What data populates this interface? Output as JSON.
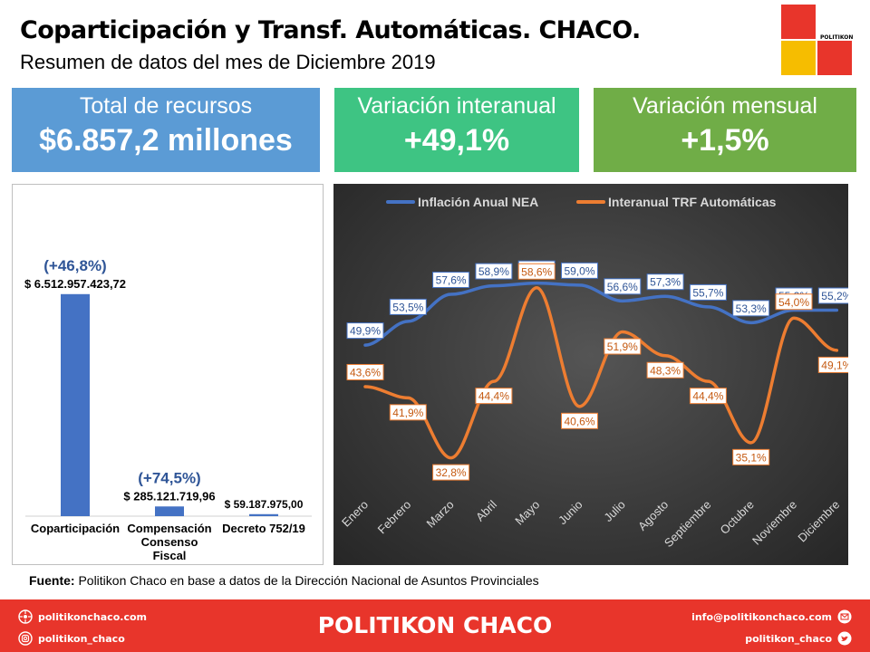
{
  "header": {
    "title": "Coparticipación y Transf. Automáticas. CHACO.",
    "subtitle": "Resumen de datos del mes de Diciembre 2019"
  },
  "logo": {
    "text": "POLITIKON"
  },
  "kpis": [
    {
      "label": "Total de recursos",
      "value": "$6.857,2 millones"
    },
    {
      "label": "Variación interanual",
      "value": "+49,1%"
    },
    {
      "label": "Variación mensual",
      "value": "+1,5%"
    }
  ],
  "chart_data": [
    {
      "type": "bar",
      "categories": [
        "Coparticipación",
        "Compensación Consenso Fiscal",
        "Decreto 752/19"
      ],
      "category_lines": [
        [
          "Coparticipación"
        ],
        [
          "Compensación",
          "Consenso",
          "Fiscal"
        ],
        [
          "Decreto 752/19"
        ]
      ],
      "values": [
        6512957423.72,
        285121719.96,
        59187975.0
      ],
      "value_labels": [
        "$ 6.512.957.423,72",
        "$ 285.121.719,96",
        "$ 59.187.975,00"
      ],
      "variation_labels": [
        "(+46,8%)",
        "(+74,5%)",
        ""
      ],
      "ylim": [
        0,
        6720000000
      ],
      "bar_color": "#4472c4",
      "grid": false
    },
    {
      "type": "line",
      "categories": [
        "Enero",
        "Febrero",
        "Marzo",
        "Abril",
        "Mayo",
        "Junio",
        "Julio",
        "Agosto",
        "Septiembre",
        "Octubre",
        "Noviembre",
        "Diciembre"
      ],
      "series": [
        {
          "name": "Inflación Anual NEA",
          "color": "#4472c4",
          "values": [
            49.9,
            53.5,
            57.6,
            58.9,
            59.3,
            59.0,
            56.6,
            57.3,
            55.7,
            53.3,
            55.2,
            55.2
          ],
          "labels": [
            "49,9%",
            "53,5%",
            "57,6%",
            "58,9%",
            "59,3%",
            "59,0%",
            "56,6%",
            "57,3%",
            "55,7%",
            "53,3%",
            "55,2%",
            "55,2%"
          ]
        },
        {
          "name": "Interanual TRF Automáticas",
          "color": "#ed7d31",
          "values": [
            43.6,
            41.9,
            32.8,
            44.4,
            58.6,
            40.6,
            51.9,
            48.3,
            44.4,
            35.1,
            54.0,
            49.1
          ],
          "labels": [
            "43,6%",
            "41,9%",
            "32,8%",
            "44,4%",
            "58,6%",
            "40,6%",
            "51,9%",
            "48,3%",
            "44,4%",
            "35,1%",
            "54,0%",
            "49,1%"
          ]
        }
      ],
      "ylim": [
        30,
        62
      ],
      "legend": "top",
      "grid": false
    }
  ],
  "source": {
    "label": "Fuente:",
    "text": " Politikon Chaco en base a datos de la Dirección Nacional de Asuntos Provinciales"
  },
  "footer": {
    "brand": "POLITIKON CHACO",
    "web": "politikonchaco.com",
    "instagram": "politikon_chaco",
    "email": "info@politikonchaco.com",
    "twitter": "politikon_chaco"
  }
}
